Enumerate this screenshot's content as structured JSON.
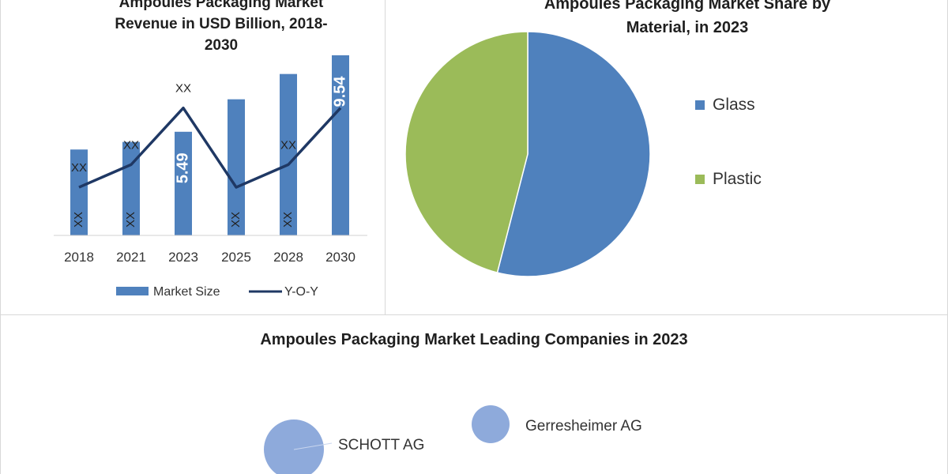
{
  "chart_data": [
    {
      "type": "bar",
      "title_lines": [
        "Ampoules Packaging Market",
        "Revenue in USD Billion, 2018-",
        "2030"
      ],
      "categories": [
        "2018",
        "2021",
        "2023",
        "2025",
        "2028",
        "2030"
      ],
      "series": [
        {
          "name": "Market Size",
          "type": "bar",
          "values": [
            4.55,
            4.95,
            5.49,
            7.21,
            8.55,
            9.54
          ],
          "labels": [
            "XX",
            "XX",
            "5.49",
            "XX",
            "XX",
            "9.54"
          ]
        },
        {
          "name": "Y-O-Y",
          "type": "line",
          "values": [
            2.55,
            3.75,
            6.75,
            2.55,
            3.75,
            6.75
          ],
          "labels": [
            "XX",
            "XX",
            "XX",
            "",
            "XX",
            ""
          ]
        }
      ],
      "ylim": [
        0,
        10
      ],
      "grid": false,
      "legend": "bottom",
      "colors": {
        "bar": "#4f81bd",
        "line": "#1f3864"
      }
    },
    {
      "type": "pie",
      "title_lines": [
        "Ampoules Packaging Market Share by",
        "Material, in 2023"
      ],
      "slices": [
        {
          "name": "Glass",
          "value": 54.0,
          "color": "#4f81bd"
        },
        {
          "name": "Plastic",
          "value": 46.0,
          "color": "#9bbb59"
        }
      ],
      "legend": "right"
    },
    {
      "type": "bubble",
      "title": "Ampoules Packaging Market Leading Companies in 2023",
      "companies": [
        {
          "name": "SCHOTT AG",
          "color": "#8eaadb"
        },
        {
          "name": "Gerresheimer AG",
          "color": "#8eaadb"
        }
      ]
    }
  ]
}
